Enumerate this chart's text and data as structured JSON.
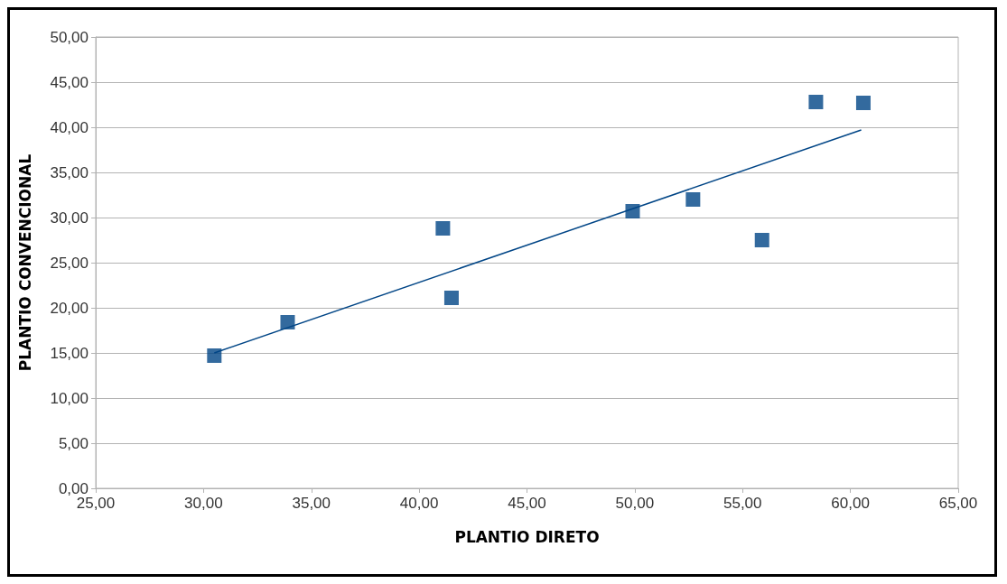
{
  "chart_data": {
    "type": "scatter",
    "xlabel": "PLANTIO DIRETO",
    "ylabel": "PLANTIO CONVENCIONAL",
    "series": [
      {
        "color": "#004586",
        "x": [
          30.5,
          33.9,
          41.1,
          41.5,
          49.9,
          52.7,
          55.9,
          58.4,
          60.6
        ],
        "values": [
          14.7,
          18.4,
          28.8,
          21.1,
          30.7,
          32,
          27.5,
          42.8,
          42.7
        ]
      },
      {
        "type": "line",
        "color": "#004586",
        "marker": "none",
        "x": [
          30.5,
          60.5
        ],
        "values": [
          15,
          39.7
        ]
      }
    ],
    "marker": "square",
    "grid": "y",
    "xlim": [
      25,
      65
    ],
    "xticks": [
      {
        "value": 25,
        "label": "25,00"
      },
      {
        "value": 30,
        "label": "30,00"
      },
      {
        "value": 35,
        "label": "35,00"
      },
      {
        "value": 40,
        "label": "40,00"
      },
      {
        "value": 45,
        "label": "45,00"
      },
      {
        "value": 50,
        "label": "50,00"
      },
      {
        "value": 55,
        "label": "55,00"
      },
      {
        "value": 60,
        "label": "60,00"
      },
      {
        "value": 65,
        "label": "65,00"
      }
    ],
    "ylim": [
      0,
      50
    ],
    "yticks": [
      {
        "value": 0,
        "label": "0,00"
      },
      {
        "value": 5,
        "label": "5,00"
      },
      {
        "value": 10,
        "label": "10,00"
      },
      {
        "value": 15,
        "label": "15,00"
      },
      {
        "value": 20,
        "label": "20,00"
      },
      {
        "value": 25,
        "label": "25,00"
      },
      {
        "value": 30,
        "label": "30,00"
      },
      {
        "value": 35,
        "label": "35,00"
      },
      {
        "value": 40,
        "label": "40,00"
      },
      {
        "value": 45,
        "label": "45,00"
      },
      {
        "value": 50,
        "label": "50,00"
      }
    ]
  }
}
